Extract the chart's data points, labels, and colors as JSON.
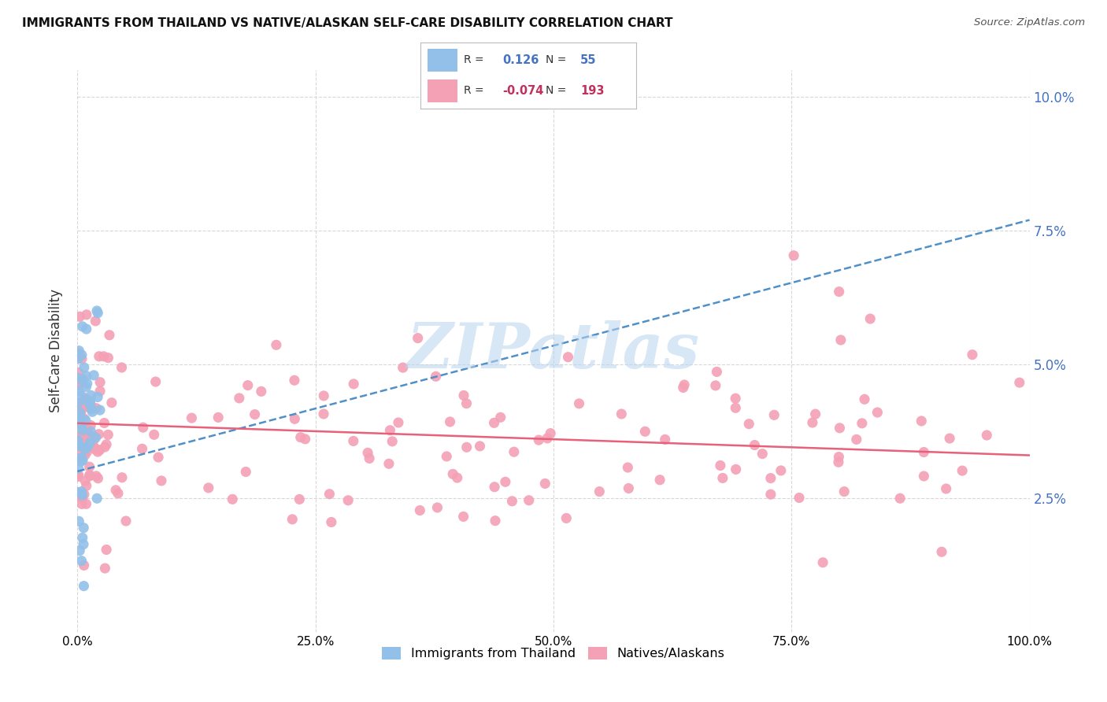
{
  "title": "IMMIGRANTS FROM THAILAND VS NATIVE/ALASKAN SELF-CARE DISABILITY CORRELATION CHART",
  "source": "Source: ZipAtlas.com",
  "ylabel": "Self-Care Disability",
  "watermark": "ZIPatlas",
  "legend_blue_R": "0.126",
  "legend_blue_N": "55",
  "legend_pink_R": "-0.074",
  "legend_pink_N": "193",
  "blue_color": "#92c0e8",
  "pink_color": "#f4a0b5",
  "blue_line_color": "#5090c8",
  "pink_line_color": "#e8607a",
  "background_color": "#ffffff",
  "grid_color": "#d8d8d8",
  "xlim": [
    0.0,
    1.0
  ],
  "ylim": [
    0.0,
    0.105
  ],
  "yticks": [
    0.025,
    0.05,
    0.075,
    0.1
  ],
  "ytick_labels": [
    "2.5%",
    "5.0%",
    "7.5%",
    "10.0%"
  ],
  "xticks": [
    0.0,
    0.25,
    0.5,
    0.75,
    1.0
  ],
  "xtick_labels": [
    "0.0%",
    "25.0%",
    "50.0%",
    "75.0%",
    "100.0%"
  ],
  "blue_trend_x0": 0.0,
  "blue_trend_x1": 1.0,
  "blue_trend_y0": 0.03,
  "blue_trend_y1": 0.077,
  "pink_trend_x0": 0.0,
  "pink_trend_x1": 1.0,
  "pink_trend_y0": 0.039,
  "pink_trend_y1": 0.033
}
